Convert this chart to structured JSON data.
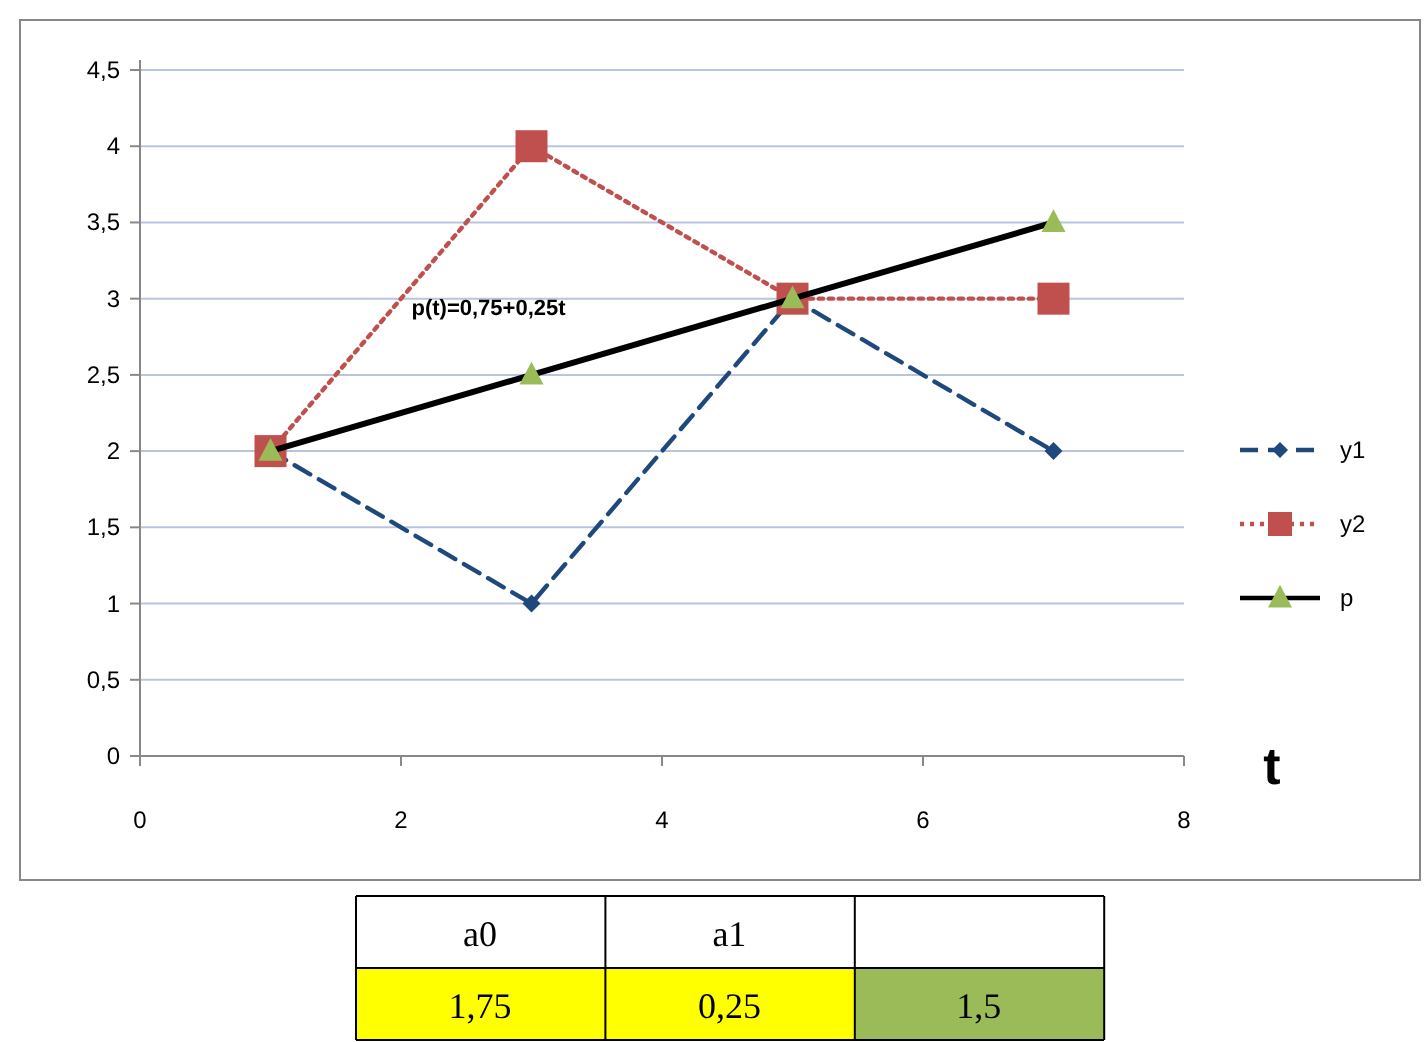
{
  "chart_data": {
    "type": "line",
    "xlabel": "t",
    "xlim": [
      0,
      8
    ],
    "xticks": [
      0,
      2,
      4,
      6,
      8
    ],
    "ylim": [
      0,
      4.5
    ],
    "yticks": [
      0,
      {
        "value": 0.5,
        "label": "0,5"
      },
      1,
      {
        "value": 1.5,
        "label": "1,5"
      },
      2,
      {
        "value": 2.5,
        "label": "2,5"
      },
      3,
      {
        "value": 3.5,
        "label": "3,5"
      },
      4,
      {
        "value": 4.5,
        "label": "4,5"
      }
    ],
    "grid": "y",
    "legend": "right",
    "series": [
      {
        "name": "y1",
        "color": "#1f497d",
        "x": [
          1,
          3,
          5,
          7
        ],
        "values": [
          2,
          1,
          3,
          2
        ],
        "marker": "diamond",
        "line_style": "dashed"
      },
      {
        "name": "y2",
        "color": "#c0504d",
        "x": [
          1,
          3,
          5,
          7
        ],
        "values": [
          2,
          4,
          3,
          3
        ],
        "marker": "square",
        "line_style": "dotted"
      },
      {
        "name": "p",
        "color": "#000000",
        "x": [
          1,
          3,
          5,
          7
        ],
        "values": [
          2,
          2.5,
          3,
          3.5
        ],
        "marker": "triangle",
        "line_style": "solid"
      }
    ],
    "annotations": [
      {
        "text": "p(t)=0,75+0,25t",
        "x": 3,
        "y": 2.5
      },
      "a0",
      "a1",
      "1,75",
      "0,25",
      "1,5"
    ]
  }
}
